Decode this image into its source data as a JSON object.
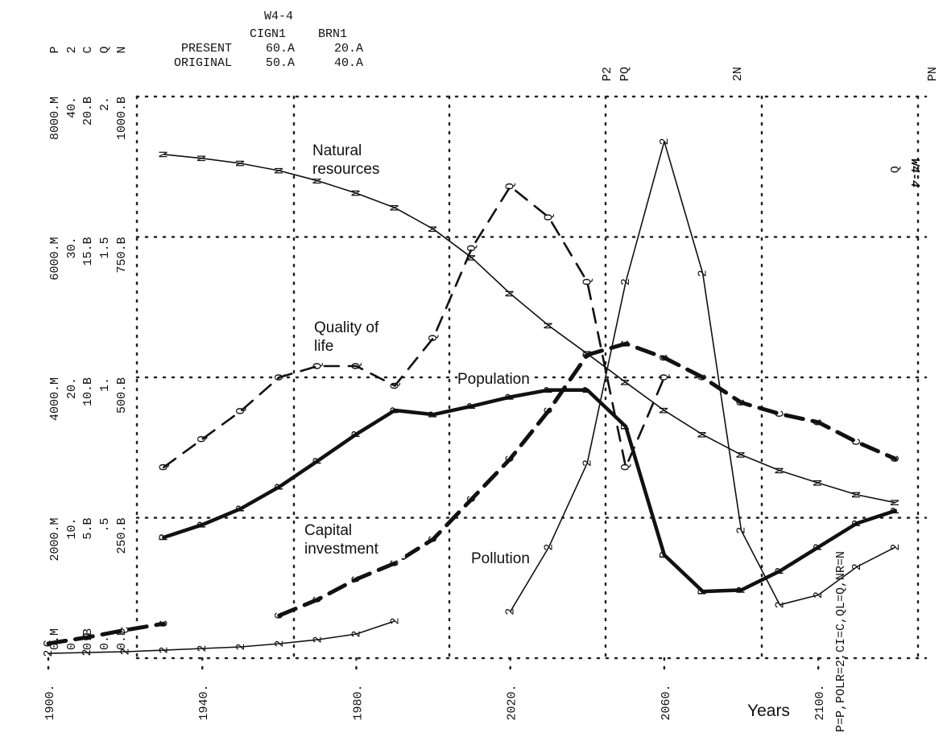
{
  "chart_data": {
    "type": "line",
    "run_id": "W4-4",
    "stamp": "W4-4",
    "parameters": {
      "columns": [
        "CIGN1",
        "BRN1"
      ],
      "rows": [
        {
          "label": "PRESENT",
          "cells": [
            "60.A",
            "20.A"
          ]
        },
        {
          "label": "ORIGINAL",
          "cells": [
            "50.A",
            "40.A"
          ]
        }
      ]
    },
    "key": "P=P,POLR=2,CI=C,QL=Q,NR=N",
    "x_label": "Years",
    "top_markers": [
      "P2",
      "PQ",
      "2N",
      "PN"
    ],
    "grid": true,
    "xlim": [
      1900,
      2128
    ],
    "xticks": [
      {
        "value": 1900,
        "label": "1900."
      },
      {
        "value": 1940,
        "label": "1940."
      },
      {
        "value": 1980,
        "label": "1980."
      },
      {
        "value": 2020,
        "label": "2020."
      },
      {
        "value": 2060,
        "label": "2060."
      },
      {
        "value": 2100,
        "label": "2100."
      }
    ],
    "x": [
      1900,
      1910,
      1920,
      1930,
      1940,
      1950,
      1960,
      1970,
      1980,
      1990,
      2000,
      2010,
      2020,
      2030,
      2040,
      2050,
      2060,
      2070,
      2080,
      2090,
      2100,
      2110,
      2120
    ],
    "series": [
      {
        "name": "Population",
        "symbol": "P",
        "color": "#111",
        "style": "thick",
        "ylim": [
          0,
          8000
        ],
        "yticks": [
          {
            "value": 0,
            "label": "0.M"
          },
          {
            "value": 2000,
            "label": "2000.M"
          },
          {
            "value": 4000,
            "label": "4000.M"
          },
          {
            "value": 6000,
            "label": "6000.M"
          },
          {
            "value": 8000,
            "label": "8000.M"
          }
        ],
        "values": [
          null,
          null,
          null,
          1720,
          1900,
          2130,
          2440,
          2810,
          3190,
          3530,
          3470,
          3590,
          3720,
          3820,
          3820,
          3300,
          1470,
          950,
          970,
          1240,
          1580,
          1920,
          2100
        ]
      },
      {
        "name": "Pollution",
        "symbol": "2",
        "color": "#111",
        "style": "thin",
        "ylim": [
          0,
          40
        ],
        "yticks": [
          {
            "value": 0,
            "label": "0."
          },
          {
            "value": 10,
            "label": "10."
          },
          {
            "value": 20,
            "label": "20."
          },
          {
            "value": 30,
            "label": "30."
          },
          {
            "value": 40,
            "label": "40."
          }
        ],
        "values": [
          0.34,
          0.4,
          0.46,
          0.57,
          0.69,
          0.8,
          1.03,
          1.32,
          1.72,
          2.64,
          null,
          null,
          3.32,
          7.9,
          13.9,
          26.8,
          36.8,
          27.4,
          9.1,
          3.8,
          4.5,
          6.5,
          7.9
        ]
      },
      {
        "name": "Capital investment",
        "symbol": "C",
        "color": "#111",
        "style": "thick-dashed",
        "ylim": [
          0,
          20
        ],
        "yticks": [
          {
            "value": 0,
            "label": "0.B"
          },
          {
            "value": 5,
            "label": "5.B"
          },
          {
            "value": 10,
            "label": "10.B"
          },
          {
            "value": 15,
            "label": "15.B"
          },
          {
            "value": 20,
            "label": "20.B"
          }
        ],
        "values": [
          0.52,
          0.74,
          1.0,
          1.23,
          null,
          null,
          1.52,
          2.09,
          2.81,
          3.38,
          4.24,
          5.67,
          7.1,
          8.82,
          10.8,
          11.2,
          10.7,
          10.0,
          9.1,
          8.7,
          8.4,
          7.7,
          7.1
        ]
      },
      {
        "name": "Quality of life",
        "symbol": "Q",
        "color": "#111",
        "style": "dashed",
        "ylim": [
          0,
          2
        ],
        "yticks": [
          {
            "value": 0,
            "label": "0."
          },
          {
            "value": 0.5,
            "label": ".5"
          },
          {
            "value": 1,
            "label": "1."
          },
          {
            "value": 1.5,
            "label": "1.5"
          },
          {
            "value": 2,
            "label": "2."
          }
        ],
        "values": [
          null,
          null,
          null,
          0.68,
          0.78,
          0.88,
          1.0,
          1.04,
          1.04,
          0.97,
          1.14,
          1.46,
          1.68,
          1.57,
          1.34,
          0.68,
          1.0,
          null,
          null,
          null,
          null,
          null,
          1.74
        ]
      },
      {
        "name": "Natural resources",
        "symbol": "N",
        "color": "#111",
        "style": "thin",
        "ylim": [
          0,
          1000
        ],
        "yticks": [
          {
            "value": 0,
            "label": "0.B"
          },
          {
            "value": 250,
            "label": "250.B"
          },
          {
            "value": 500,
            "label": "500.B"
          },
          {
            "value": 750,
            "label": "750.B"
          },
          {
            "value": 1000,
            "label": "1000.B"
          }
        ],
        "values": [
          null,
          null,
          null,
          897,
          890,
          881,
          868,
          850,
          828,
          802,
          764,
          713,
          649,
          592,
          542,
          491,
          441,
          398,
          362,
          334,
          312,
          291,
          277
        ]
      }
    ]
  }
}
